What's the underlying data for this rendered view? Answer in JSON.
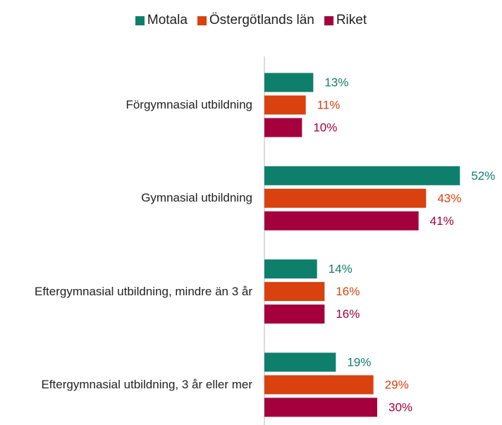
{
  "chart_data": {
    "type": "hbar",
    "categories": [
      "Förgymnasial utbildning",
      "Gymnasial utbildning",
      "Eftergymnasial utbildning, mindre än 3 år",
      "Eftergymnasial utbildning, 3 år eller mer"
    ],
    "series": [
      {
        "name": "Motala",
        "color": "#0e7f6b",
        "values": [
          13,
          52,
          14,
          19
        ],
        "value_labels": [
          "13%",
          "52%",
          "14%",
          "19%"
        ]
      },
      {
        "name": "Östergötlands län",
        "color": "#d9410f",
        "values": [
          11,
          43,
          16,
          29
        ],
        "value_labels": [
          "11%",
          "43%",
          "16%",
          "29%"
        ]
      },
      {
        "name": "Riket",
        "color": "#a3003d",
        "values": [
          10,
          41,
          16,
          30
        ],
        "value_labels": [
          "10%",
          "41%",
          "16%",
          "30%"
        ]
      }
    ],
    "xlim": [
      0,
      60
    ],
    "legend": "top"
  }
}
